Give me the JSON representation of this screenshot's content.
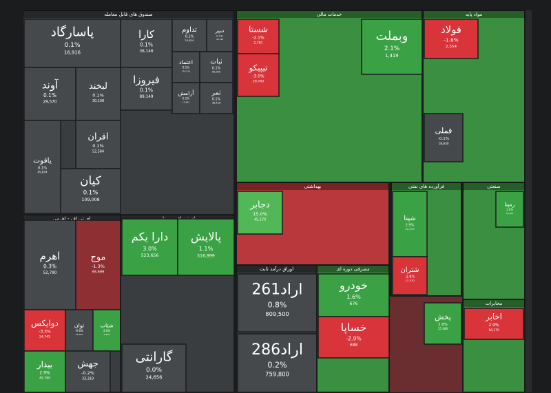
{
  "sections": [
    {
      "title": "صندوق های قابل معامله",
      "tiles": [
        {
          "name": "پاسارگاد",
          "change": "0.1%",
          "value": "16,916"
        },
        {
          "name": "کارا",
          "change": "0.1%",
          "value": "36,146"
        },
        {
          "name": "تداوم",
          "change": "0.1%",
          "value": "25,820"
        },
        {
          "name": "سپر",
          "change": "0.1%",
          "value": "40,790"
        },
        {
          "name": "آوند",
          "change": "0.1%",
          "value": "29,570"
        },
        {
          "name": "لبخند",
          "change": "0.1%",
          "value": "30,108"
        },
        {
          "name": "فیروزا",
          "change": "0.1%",
          "value": "89,149"
        },
        {
          "name": "اعتماد",
          "change": "0.1%",
          "value": "116,210"
        },
        {
          "name": "ثبات",
          "change": "0.1%",
          "value": "50,950"
        },
        {
          "name": "آرامش",
          "change": "0.1%",
          "value": "11,644"
        },
        {
          "name": "ثمر",
          "change": "0.1%",
          "value": "36,418"
        },
        {
          "name": "یاقوت",
          "change": "0.1%",
          "value": "45,874"
        },
        {
          "name": "افران",
          "change": "0.1%",
          "value": "52,584"
        },
        {
          "name": "کیان",
          "change": "0.1%",
          "value": "109,008"
        }
      ]
    },
    {
      "title": "خدمات مالی",
      "tiles": [
        {
          "name": "شستا",
          "change": "-2.1%",
          "value": "2,781"
        },
        {
          "name": "تیپیکو",
          "change": "-3.0%",
          "value": "29,740"
        },
        {
          "name": "وبملت",
          "change": "2.1%",
          "value": "1,419"
        }
      ]
    },
    {
      "title": "مواد پایه",
      "tiles": [
        {
          "name": "فولاد",
          "change": "-1.8%",
          "value": "2,554"
        },
        {
          "name": "فملی",
          "change": "-0.1%",
          "value": "18,830"
        }
      ]
    },
    {
      "title": "بهداشتی",
      "tiles": [
        {
          "name": "دجابر",
          "change": "15.0%",
          "value": "45,170"
        }
      ]
    },
    {
      "title": "فرآورده های نفتی",
      "tiles": [
        {
          "name": "شپنا",
          "change": "2.9%",
          "value": "11,570"
        },
        {
          "name": "شتران",
          "change": "-1.8%",
          "value": "11,570"
        }
      ]
    },
    {
      "title": "صنعتی",
      "tiles": [
        {
          "name": "رمپنا",
          "change": "1.0%",
          "value": "18,300"
        }
      ]
    },
    {
      "title": "ای تی اف - اهرمی",
      "tiles": [
        {
          "name": "اهرم",
          "change": "0.3%",
          "value": "52,790"
        },
        {
          "name": "موج",
          "change": "-1.3%",
          "value": "65,699"
        },
        {
          "name": "دوایکس",
          "change": "-3.3%",
          "value": "24,745"
        },
        {
          "name": "توان",
          "change": "-0.6%",
          "value": "52,100"
        },
        {
          "name": "شتاب",
          "change": "4.0%",
          "value": "4,616"
        },
        {
          "name": "بیدار",
          "change": "2.9%",
          "value": "45,780"
        },
        {
          "name": "جهش",
          "change": "-0.2%",
          "value": "33,319"
        }
      ]
    },
    {
      "title": "ای تی اف - سهام",
      "tiles": [
        {
          "name": "دارا یکم",
          "change": "3.0%",
          "value": "523,656"
        },
        {
          "name": "پالایش",
          "change": "1.1%",
          "value": "516,999"
        },
        {
          "name": "گارانتی",
          "change": "0.0%",
          "value": "24,656"
        }
      ]
    },
    {
      "title": "اوراق درآمد ثابت",
      "tiles": [
        {
          "name": "اراد261",
          "change": "0.8%",
          "value": "809,500"
        },
        {
          "name": "اراد286",
          "change": "0.2%",
          "value": "759,800"
        }
      ]
    },
    {
      "title": "مصرفی دوره ای",
      "tiles": [
        {
          "name": "خودرو",
          "change": "1.6%",
          "value": "676"
        },
        {
          "name": "خساپا",
          "change": "-2.9%",
          "value": "688"
        }
      ]
    },
    {
      "title": "مخابرات",
      "tiles": [
        {
          "name": "اخابر",
          "change": "2.9%",
          "value": "16,170"
        },
        {
          "name": "پخش",
          "change": "2.8%",
          "value": "15,480"
        }
      ]
    }
  ]
}
